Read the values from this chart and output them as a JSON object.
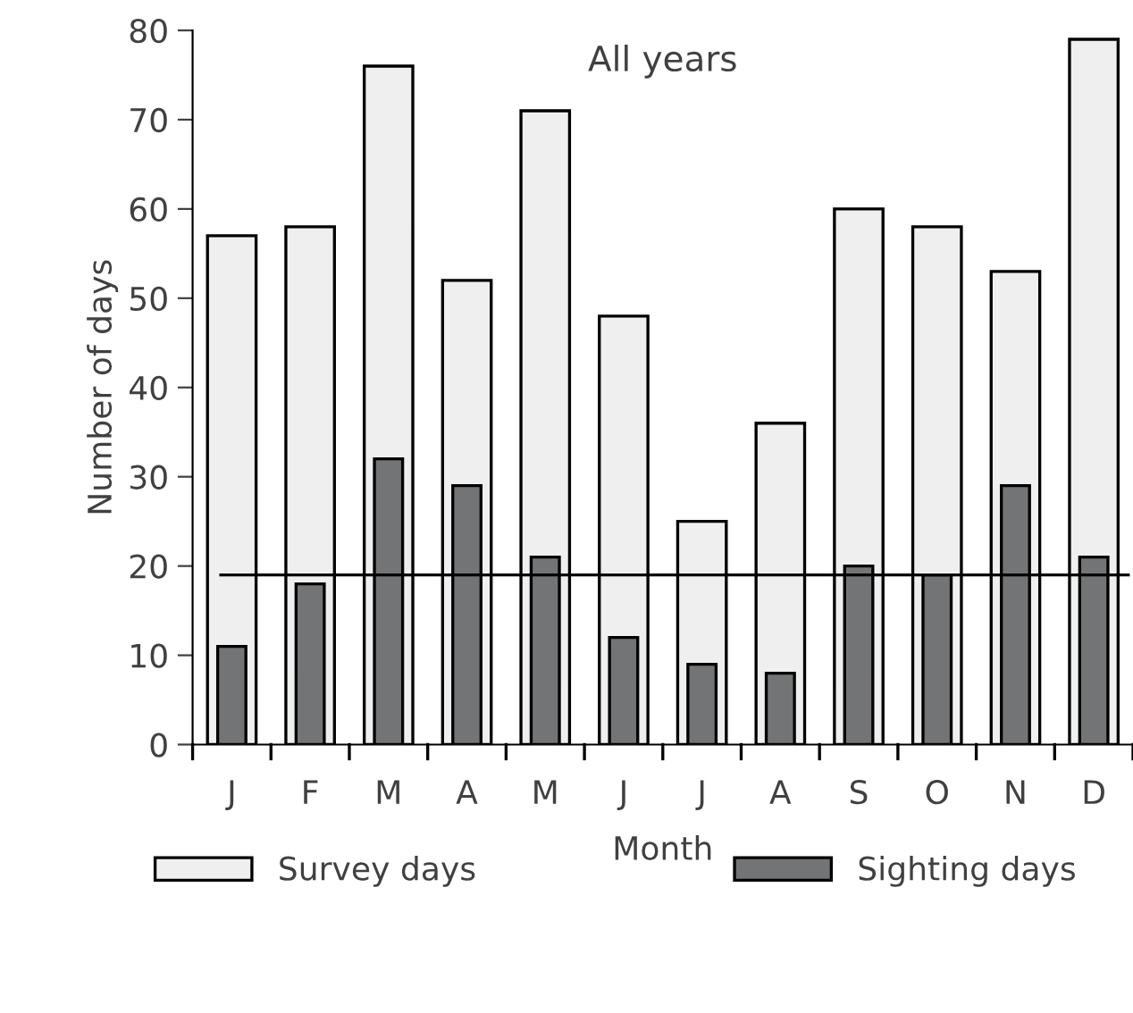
{
  "chart_data": {
    "type": "bar",
    "title": "All years",
    "xlabel": "Month",
    "ylabel": "Number of days",
    "categories": [
      "J",
      "F",
      "M",
      "A",
      "M",
      "J",
      "J",
      "A",
      "S",
      "O",
      "N",
      "D"
    ],
    "series": [
      {
        "name": "Survey days",
        "color": "#eeefee",
        "values": [
          57,
          58,
          76,
          52,
          71,
          48,
          25,
          36,
          60,
          58,
          53,
          79
        ]
      },
      {
        "name": "Sighting days",
        "color": "#737476",
        "values": [
          11,
          18,
          32,
          29,
          21,
          12,
          9,
          8,
          20,
          19,
          29,
          21
        ]
      }
    ],
    "ylim": [
      0,
      80
    ],
    "yticks": [
      0,
      10,
      20,
      30,
      40,
      50,
      60,
      70,
      80
    ],
    "ref_lines": [
      {
        "axis": "y",
        "value": 19,
        "color": "#000000",
        "line_style": "solid"
      }
    ],
    "grid": false,
    "legend": "bottom"
  }
}
